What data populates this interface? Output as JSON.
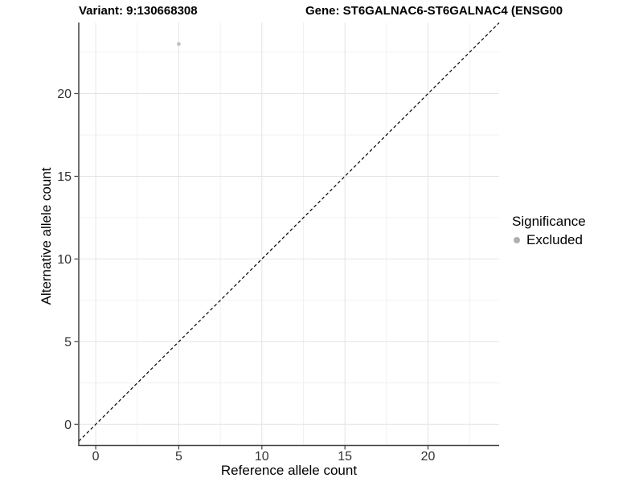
{
  "chart_data": {
    "type": "scatter",
    "titles": {
      "left": "Variant: 9:130668308",
      "right": "Gene: ST6GALNAC6-ST6GALNAC4 (ENSG00"
    },
    "xlabel": "Reference allele count",
    "ylabel": "Alternative allele count",
    "x_ticks": [
      0,
      5,
      10,
      15,
      20
    ],
    "y_ticks": [
      0,
      5,
      10,
      15,
      20
    ],
    "x_minor_ticks": [
      2.5,
      7.5,
      12.5,
      17.5,
      22.5
    ],
    "y_minor_ticks": [
      2.5,
      7.5,
      12.5,
      17.5,
      22.5
    ],
    "xlim": [
      -1.02,
      24.28
    ],
    "ylim": [
      -1.25,
      24.3
    ],
    "grid": "major and minor gridlines on, white background",
    "points": [
      {
        "x": 5,
        "y": 23,
        "significance": "Excluded"
      }
    ],
    "reference_line": {
      "slope": 1,
      "intercept": 0,
      "style": "dashed",
      "color": "#000000"
    },
    "legend": {
      "title": "Significance",
      "position": "right",
      "entries": [
        {
          "label": "Excluded",
          "color": "#b0b0b0"
        }
      ]
    },
    "colors": {
      "point": "#c0c0c0",
      "grid_major": "#e4e4e4",
      "grid_minor": "#f1f1f1",
      "axis_line": "#404040",
      "tick_mark": "#404040",
      "tick_label": "#333333",
      "title_text": "#000000"
    }
  }
}
